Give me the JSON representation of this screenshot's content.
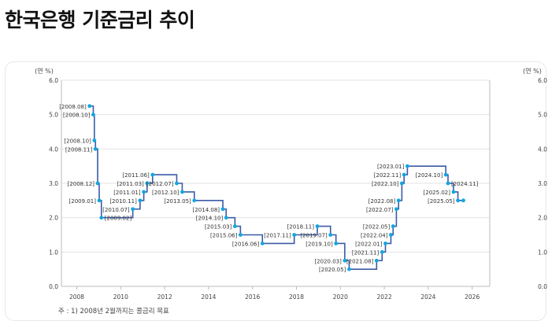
{
  "page": {
    "title": "한국은행 기준금리 추이"
  },
  "footnote": "주 : 1) 2008년 2월까지는 콜금리 목표",
  "chart_data": {
    "type": "line",
    "step": true,
    "ylabel_left": "(연 %)",
    "ylabel_right": "(연 %)",
    "xlim": [
      2007.3,
      2026.8
    ],
    "ylim": [
      0,
      6
    ],
    "x_ticks": [
      2008,
      2010,
      2012,
      2014,
      2016,
      2018,
      2020,
      2022,
      2024,
      2026
    ],
    "y_ticks": [
      "0.0",
      "1.0",
      "2.0",
      "3.0",
      "4.0",
      "5.0",
      "6.0"
    ],
    "grid": true,
    "colors": {
      "line": "#3a5ba6",
      "point": "#12a6e0",
      "grid": "#e3e3e3",
      "axis": "#bbbbbb"
    },
    "series": [
      {
        "points": [
          {
            "x": 2008.58,
            "y": 5.25,
            "label": "[2008.08]",
            "side": "left"
          },
          {
            "x": 2008.75,
            "y": 5.0,
            "label": "[2008.10]",
            "side": "left"
          },
          {
            "x": 2008.8,
            "y": 4.25,
            "label": "[2008.10]",
            "side": "left"
          },
          {
            "x": 2008.85,
            "y": 4.0,
            "label": "[2008.11]",
            "side": "left"
          },
          {
            "x": 2008.95,
            "y": 3.0,
            "label": "[2008.12]",
            "side": "left"
          },
          {
            "x": 2009.02,
            "y": 2.5,
            "label": "[2009.01]",
            "side": "left"
          },
          {
            "x": 2009.12,
            "y": 2.0,
            "label": "[2009.02]",
            "side": "right"
          },
          {
            "x": 2010.55,
            "y": 2.25,
            "label": "[2010.07]",
            "side": "left"
          },
          {
            "x": 2010.88,
            "y": 2.5,
            "label": "[2010.11]",
            "side": "left"
          },
          {
            "x": 2011.05,
            "y": 2.75,
            "label": "[2011.01]",
            "side": "left"
          },
          {
            "x": 2011.2,
            "y": 3.0,
            "label": "[2011.03]",
            "side": "left"
          },
          {
            "x": 2011.45,
            "y": 3.25,
            "label": "[2011.06]",
            "side": "left"
          },
          {
            "x": 2012.55,
            "y": 3.0,
            "label": "[2012.07]",
            "side": "left"
          },
          {
            "x": 2012.8,
            "y": 2.75,
            "label": "[2012.10]",
            "side": "left"
          },
          {
            "x": 2013.35,
            "y": 2.5,
            "label": "[2013.05]",
            "side": "left"
          },
          {
            "x": 2014.65,
            "y": 2.25,
            "label": "[2014.08]",
            "side": "left"
          },
          {
            "x": 2014.8,
            "y": 2.0,
            "label": "[2014.10]",
            "side": "left"
          },
          {
            "x": 2015.2,
            "y": 1.75,
            "label": "[2015.03]",
            "side": "left"
          },
          {
            "x": 2015.45,
            "y": 1.5,
            "label": "[2015.06]",
            "side": "left"
          },
          {
            "x": 2016.45,
            "y": 1.25,
            "label": "[2016.06]",
            "side": "left"
          },
          {
            "x": 2017.9,
            "y": 1.5,
            "label": "[2017.11]",
            "side": "left"
          },
          {
            "x": 2018.95,
            "y": 1.75,
            "label": "[2018.11]",
            "side": "left"
          },
          {
            "x": 2019.55,
            "y": 1.5,
            "label": "[2019.07]",
            "side": "left"
          },
          {
            "x": 2019.8,
            "y": 1.25,
            "label": "[2019.10]",
            "side": "left"
          },
          {
            "x": 2020.2,
            "y": 0.75,
            "label": "[2020.03]",
            "side": "left"
          },
          {
            "x": 2020.4,
            "y": 0.5,
            "label": "[2020.05]",
            "side": "left"
          },
          {
            "x": 2021.65,
            "y": 0.75,
            "label": "[2021.08]",
            "side": "left"
          },
          {
            "x": 2021.9,
            "y": 1.0,
            "label": "[2021.11]",
            "side": "left"
          },
          {
            "x": 2022.05,
            "y": 1.25,
            "label": "[2022.01]",
            "side": "left"
          },
          {
            "x": 2022.3,
            "y": 1.5,
            "label": "[2022.04]",
            "side": "left"
          },
          {
            "x": 2022.4,
            "y": 1.75,
            "label": "[2022.05]",
            "side": "left"
          },
          {
            "x": 2022.55,
            "y": 2.25,
            "label": "[2022.07]",
            "side": "left"
          },
          {
            "x": 2022.65,
            "y": 2.5,
            "label": "[2022.08]",
            "side": "left"
          },
          {
            "x": 2022.8,
            "y": 3.0,
            "label": "[2022.10]",
            "side": "left"
          },
          {
            "x": 2022.9,
            "y": 3.25,
            "label": "[2022.11]",
            "side": "left"
          },
          {
            "x": 2023.05,
            "y": 3.5,
            "label": "[2023.01]",
            "side": "left"
          },
          {
            "x": 2024.8,
            "y": 3.25,
            "label": "[2024.10]",
            "side": "left"
          },
          {
            "x": 2024.9,
            "y": 3.0,
            "label": "[2024.11]",
            "side": "right"
          },
          {
            "x": 2025.15,
            "y": 2.75,
            "label": "[2025.02]",
            "side": "left"
          },
          {
            "x": 2025.35,
            "y": 2.5,
            "label": "[2025.05]",
            "side": "left"
          },
          {
            "x": 2025.6,
            "y": 2.5,
            "label": "",
            "side": "none"
          }
        ]
      }
    ]
  }
}
